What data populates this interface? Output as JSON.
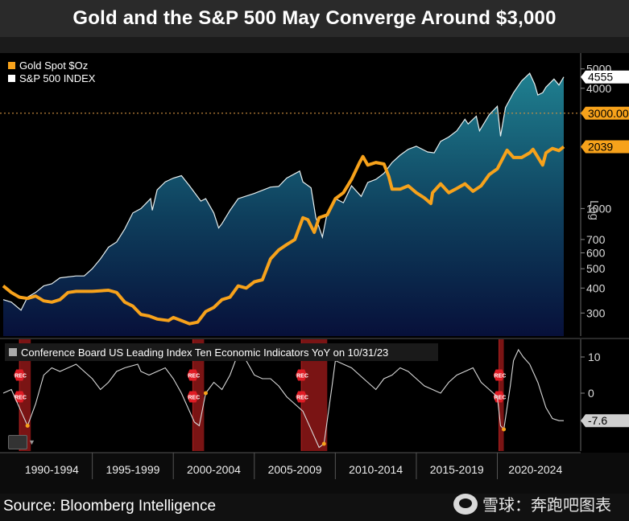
{
  "title": "Gold and the S&P 500 May Converge Around $3,000",
  "source": "Source: Bloomberg Intelligence",
  "watermark": "雪球：奔跑吧图表",
  "colors": {
    "gold": "#f7a21b",
    "sp500_line": "#e8f0f0",
    "sp500_fill_top": "#1d7a86",
    "sp500_fill_bottom": "#081030",
    "recession": "#7a1414",
    "dotted": "#d09040"
  },
  "chart_data": [
    {
      "type": "line",
      "title": "Gold and the S&P 500 May Converge Around $3,000",
      "scale": "log",
      "axis_label": "Log",
      "ylim": [
        230,
        6000
      ],
      "xlim": [
        1989.5,
        2024.2
      ],
      "yticks": [
        300,
        400,
        500,
        600,
        700,
        1000,
        4000,
        5000
      ],
      "reference_line": {
        "value": 3000,
        "label": "3000.00"
      },
      "series": [
        {
          "name": "Gold Spot $Oz",
          "last_label": "2039",
          "points": [
            [
              1989.5,
              410
            ],
            [
              1990,
              380
            ],
            [
              1990.5,
              360
            ],
            [
              1991,
              355
            ],
            [
              1991.5,
              365
            ],
            [
              1992,
              345
            ],
            [
              1992.5,
              340
            ],
            [
              1993,
              350
            ],
            [
              1993.5,
              380
            ],
            [
              1994,
              385
            ],
            [
              1995,
              385
            ],
            [
              1996,
              390
            ],
            [
              1996.5,
              380
            ],
            [
              1997,
              340
            ],
            [
              1997.5,
              325
            ],
            [
              1998,
              295
            ],
            [
              1998.5,
              290
            ],
            [
              1999,
              280
            ],
            [
              1999.7,
              275
            ],
            [
              2000,
              285
            ],
            [
              2000.5,
              275
            ],
            [
              2001,
              265
            ],
            [
              2001.5,
              270
            ],
            [
              2002,
              305
            ],
            [
              2002.5,
              320
            ],
            [
              2003,
              350
            ],
            [
              2003.5,
              360
            ],
            [
              2004,
              410
            ],
            [
              2004.5,
              400
            ],
            [
              2005,
              430
            ],
            [
              2005.5,
              440
            ],
            [
              2006,
              560
            ],
            [
              2006.5,
              620
            ],
            [
              2007,
              660
            ],
            [
              2007.5,
              700
            ],
            [
              2008,
              900
            ],
            [
              2008.3,
              880
            ],
            [
              2008.7,
              760
            ],
            [
              2009,
              900
            ],
            [
              2009.5,
              930
            ],
            [
              2010,
              1120
            ],
            [
              2010.5,
              1200
            ],
            [
              2011,
              1400
            ],
            [
              2011.5,
              1700
            ],
            [
              2011.7,
              1820
            ],
            [
              2012,
              1650
            ],
            [
              2012.5,
              1700
            ],
            [
              2013,
              1670
            ],
            [
              2013.3,
              1450
            ],
            [
              2013.5,
              1250
            ],
            [
              2014,
              1250
            ],
            [
              2014.5,
              1300
            ],
            [
              2015,
              1200
            ],
            [
              2015.5,
              1130
            ],
            [
              2015.9,
              1060
            ],
            [
              2016,
              1200
            ],
            [
              2016.5,
              1330
            ],
            [
              2017,
              1200
            ],
            [
              2017.5,
              1260
            ],
            [
              2018,
              1330
            ],
            [
              2018.5,
              1220
            ],
            [
              2019,
              1300
            ],
            [
              2019.5,
              1480
            ],
            [
              2020,
              1580
            ],
            [
              2020.6,
              1960
            ],
            [
              2021,
              1800
            ],
            [
              2021.5,
              1800
            ],
            [
              2022,
              1900
            ],
            [
              2022.2,
              1980
            ],
            [
              2022.8,
              1650
            ],
            [
              2023,
              1900
            ],
            [
              2023.4,
              2000
            ],
            [
              2023.8,
              1950
            ],
            [
              2024.1,
              2039
            ]
          ]
        },
        {
          "name": "S&P 500 INDEX",
          "last_label": "4555",
          "points": [
            [
              1989.5,
              350
            ],
            [
              1990,
              340
            ],
            [
              1990.6,
              310
            ],
            [
              1991,
              360
            ],
            [
              1991.5,
              380
            ],
            [
              1992,
              410
            ],
            [
              1992.5,
              420
            ],
            [
              1993,
              450
            ],
            [
              1994,
              460
            ],
            [
              1994.5,
              460
            ],
            [
              1995,
              500
            ],
            [
              1995.5,
              560
            ],
            [
              1996,
              640
            ],
            [
              1996.5,
              680
            ],
            [
              1997,
              790
            ],
            [
              1997.5,
              950
            ],
            [
              1998,
              1000
            ],
            [
              1998.6,
              1120
            ],
            [
              1998.7,
              980
            ],
            [
              1999,
              1240
            ],
            [
              1999.5,
              1360
            ],
            [
              2000,
              1420
            ],
            [
              2000.5,
              1460
            ],
            [
              2001,
              1300
            ],
            [
              2001.7,
              1090
            ],
            [
              2002,
              1120
            ],
            [
              2002.5,
              950
            ],
            [
              2002.8,
              800
            ],
            [
              2003,
              840
            ],
            [
              2003.5,
              980
            ],
            [
              2004,
              1120
            ],
            [
              2005,
              1190
            ],
            [
              2006,
              1280
            ],
            [
              2006.5,
              1290
            ],
            [
              2007,
              1420
            ],
            [
              2007.8,
              1540
            ],
            [
              2008,
              1360
            ],
            [
              2008.5,
              1270
            ],
            [
              2008.8,
              900
            ],
            [
              2009.2,
              720
            ],
            [
              2009.5,
              950
            ],
            [
              2010,
              1120
            ],
            [
              2010.5,
              1070
            ],
            [
              2011,
              1300
            ],
            [
              2011.6,
              1150
            ],
            [
              2012,
              1350
            ],
            [
              2012.5,
              1400
            ],
            [
              2013,
              1500
            ],
            [
              2013.5,
              1700
            ],
            [
              2014,
              1850
            ],
            [
              2014.5,
              1980
            ],
            [
              2015,
              2050
            ],
            [
              2015.7,
              1920
            ],
            [
              2016.1,
              1900
            ],
            [
              2016.5,
              2170
            ],
            [
              2017,
              2280
            ],
            [
              2017.5,
              2450
            ],
            [
              2018,
              2800
            ],
            [
              2018.2,
              2650
            ],
            [
              2018.7,
              2900
            ],
            [
              2018.9,
              2450
            ],
            [
              2019.5,
              2950
            ],
            [
              2020,
              3250
            ],
            [
              2020.2,
              2300
            ],
            [
              2020.5,
              3200
            ],
            [
              2021,
              3800
            ],
            [
              2021.5,
              4350
            ],
            [
              2022,
              4750
            ],
            [
              2022.3,
              4200
            ],
            [
              2022.5,
              3700
            ],
            [
              2022.8,
              3800
            ],
            [
              2023,
              4050
            ],
            [
              2023.5,
              4450
            ],
            [
              2023.8,
              4150
            ],
            [
              2024.1,
              4555
            ]
          ]
        }
      ]
    },
    {
      "type": "line",
      "title": "Conference Board US Leading Index Ten Economic Indicators YoY on 10/31/23",
      "ylim": [
        -16,
        14
      ],
      "yticks": [
        10,
        0
      ],
      "last_label": "-7.6",
      "recession_marker": "REC",
      "recessions": [
        [
          1990.5,
          1991.2
        ],
        [
          2001.2,
          2001.9
        ],
        [
          2007.9,
          2009.5
        ],
        [
          2020.1,
          2020.4
        ]
      ],
      "points": [
        [
          1989.5,
          0
        ],
        [
          1990,
          1
        ],
        [
          1990.5,
          -4
        ],
        [
          1991,
          -9
        ],
        [
          1991.5,
          -3
        ],
        [
          1992,
          5
        ],
        [
          1992.5,
          7
        ],
        [
          1993,
          6
        ],
        [
          1994,
          8
        ],
        [
          1995,
          4
        ],
        [
          1995.5,
          1
        ],
        [
          1996,
          3
        ],
        [
          1996.5,
          6
        ],
        [
          1997,
          7
        ],
        [
          1997.8,
          8
        ],
        [
          1998,
          6
        ],
        [
          1998.5,
          5
        ],
        [
          1999,
          6
        ],
        [
          1999.5,
          7
        ],
        [
          2000,
          4
        ],
        [
          2000.5,
          0
        ],
        [
          2001,
          -5
        ],
        [
          2001.3,
          -8
        ],
        [
          2001.6,
          -9
        ],
        [
          2002,
          0
        ],
        [
          2002.5,
          3
        ],
        [
          2003,
          1
        ],
        [
          2003.5,
          5
        ],
        [
          2004,
          11
        ],
        [
          2004.5,
          9
        ],
        [
          2005,
          5
        ],
        [
          2005.5,
          4
        ],
        [
          2006,
          4
        ],
        [
          2006.5,
          2
        ],
        [
          2007,
          -1
        ],
        [
          2007.5,
          -3
        ],
        [
          2008,
          -5
        ],
        [
          2008.5,
          -10
        ],
        [
          2009,
          -15
        ],
        [
          2009.3,
          -14
        ],
        [
          2009.8,
          2
        ],
        [
          2010,
          9
        ],
        [
          2010.5,
          8
        ],
        [
          2011,
          7
        ],
        [
          2011.5,
          5
        ],
        [
          2012,
          3
        ],
        [
          2012.5,
          1
        ],
        [
          2013,
          4
        ],
        [
          2013.5,
          5
        ],
        [
          2014,
          7
        ],
        [
          2014.5,
          6
        ],
        [
          2015,
          4
        ],
        [
          2015.5,
          2
        ],
        [
          2016,
          1
        ],
        [
          2016.5,
          0
        ],
        [
          2017,
          3
        ],
        [
          2017.5,
          5
        ],
        [
          2018,
          6
        ],
        [
          2018.5,
          7
        ],
        [
          2019,
          3
        ],
        [
          2019.5,
          1
        ],
        [
          2020,
          -1
        ],
        [
          2020.2,
          -9
        ],
        [
          2020.4,
          -10
        ],
        [
          2020.8,
          2
        ],
        [
          2021,
          9
        ],
        [
          2021.3,
          12
        ],
        [
          2021.6,
          10
        ],
        [
          2022,
          8
        ],
        [
          2022.5,
          3
        ],
        [
          2023,
          -4
        ],
        [
          2023.4,
          -7
        ],
        [
          2023.8,
          -7.6
        ],
        [
          2024.1,
          -7.6
        ]
      ]
    }
  ],
  "x_axis": {
    "periods": [
      "1990-1994",
      "1995-1999",
      "2000-2004",
      "2005-2009",
      "2010-2014",
      "2015-2019",
      "2020-2024"
    ]
  }
}
